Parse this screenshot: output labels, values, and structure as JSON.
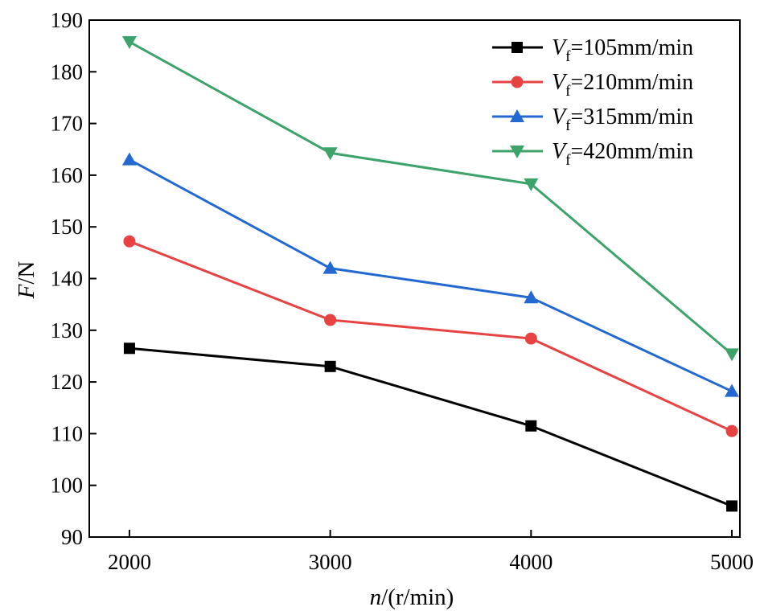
{
  "chart_data": {
    "type": "line",
    "x": [
      2000,
      3000,
      4000,
      5000
    ],
    "xticks": [
      "2000",
      "3000",
      "4000",
      "5000"
    ],
    "yticks": [
      "90",
      "100",
      "110",
      "120",
      "130",
      "140",
      "150",
      "160",
      "170",
      "180",
      "190"
    ],
    "xlim": [
      1800,
      5040
    ],
    "ylim": [
      90,
      190
    ],
    "xlabel": {
      "italic": "n",
      "rest": "/(r/min)"
    },
    "ylabel": {
      "italic": "F",
      "rest": "/N"
    },
    "legend_position": "top-right",
    "series": [
      {
        "label_var": "V",
        "label_sub": "f",
        "label_rest": "=105mm/min",
        "color": "#000000",
        "marker": "square",
        "values": [
          126.5,
          123.0,
          111.5,
          96.0
        ]
      },
      {
        "label_var": "V",
        "label_sub": "f",
        "label_rest": "=210mm/min",
        "color": "#e84343",
        "marker": "circle",
        "values": [
          147.2,
          132.0,
          128.4,
          110.5
        ]
      },
      {
        "label_var": "V",
        "label_sub": "f",
        "label_rest": "=315mm/min",
        "color": "#2469d2",
        "marker": "triangle-up",
        "values": [
          163.0,
          142.0,
          136.3,
          118.2
        ]
      },
      {
        "label_var": "V",
        "label_sub": "f",
        "label_rest": "=420mm/min",
        "color": "#3ea36a",
        "marker": "triangle-down",
        "values": [
          185.8,
          164.3,
          158.3,
          125.4
        ]
      }
    ]
  }
}
